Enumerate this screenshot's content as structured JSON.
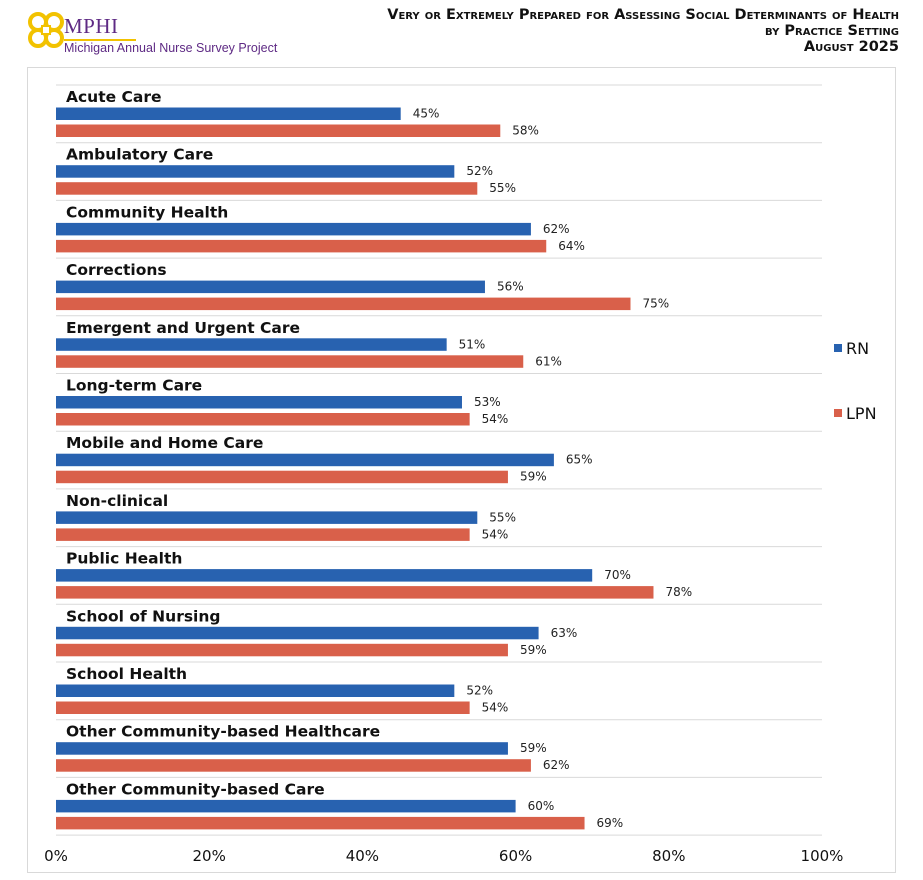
{
  "branding": {
    "name": "MPHI",
    "subtitle": "Michigan Annual Nurse Survey Project"
  },
  "colors": {
    "rn": "#2862b0",
    "lpn": "#d9604a",
    "grid": "#d9d9d9"
  },
  "chart_data": {
    "type": "bar",
    "orientation": "horizontal",
    "title": "Very or Extremely Prepared for Assessing Social Determinants of Health",
    "subtitle": "by Practice Setting",
    "date": "August 2025",
    "categories": [
      "Acute Care",
      "Ambulatory Care",
      "Community Health",
      "Corrections",
      "Emergent and Urgent Care",
      "Long-term Care",
      "Mobile and Home Care",
      "Non-clinical",
      "Public Health",
      "School of Nursing",
      "School Health",
      "Other Community-based Healthcare",
      "Other Community-based Care"
    ],
    "series": [
      {
        "name": "RN",
        "values": [
          45,
          52,
          62,
          56,
          51,
          53,
          65,
          55,
          70,
          63,
          52,
          59,
          60
        ]
      },
      {
        "name": "LPN",
        "values": [
          58,
          55,
          64,
          75,
          61,
          54,
          59,
          54,
          78,
          59,
          54,
          62,
          69
        ]
      }
    ],
    "value_suffix": "%",
    "xlim": [
      0,
      100
    ],
    "xticks": [
      "0%",
      "20%",
      "40%",
      "60%",
      "80%",
      "100%"
    ],
    "legend_position": "right",
    "grid": "horizontal separators"
  }
}
